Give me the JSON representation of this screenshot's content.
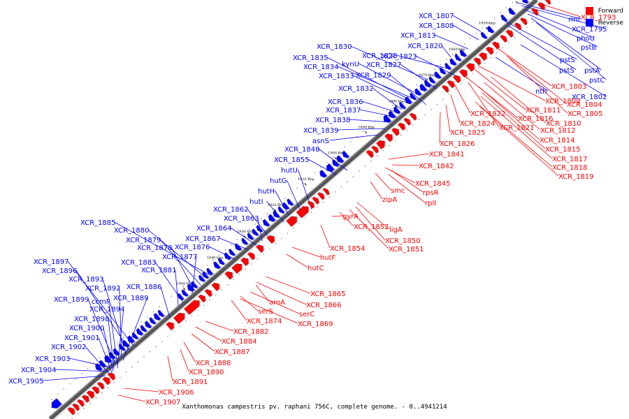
{
  "caption": "Xanthomonas campestris pv. raphani 756C, complete genome. - 0..4941214",
  "colors": {
    "forward": "#ff0000",
    "reverse": "#0000ff"
  },
  "legend": [
    {
      "label": "Forward",
      "color": "#ff0000"
    },
    {
      "label": "Reverse",
      "color": "#0000ff"
    }
  ],
  "ticks": [
    "1840 kbp",
    "1850 kbp",
    "1860 kbp",
    "1870 kbp",
    "1880 kbp",
    "1890 kbp",
    "1900 kbp",
    "1910 kbp",
    "1920 kbp",
    "1930 kbp",
    "1940 kbp",
    "1950 kbp"
  ],
  "reverse_labels": [
    "XCR_1807",
    "XCR_1808",
    "XCR_1813",
    "XCR_1820",
    "XCR_1830",
    "XCR_1828",
    "XCR_1823",
    "XCR_1835",
    "XCR_1834",
    "XCR_1833",
    "kynU",
    "XCR_1827",
    "XCR_1829",
    "XCR_1832",
    "XCR_1836",
    "XCR_1837",
    "XCR_1838",
    "XCR_1839",
    "asnS",
    "XCR_1848",
    "XCR_1855",
    "hutU",
    "hutG",
    "hutH",
    "hutI",
    "XCR_1862",
    "XCR_1863",
    "XCR_1864",
    "XCR_1867",
    "XCR_1876",
    "XCR_1885",
    "XCR_1880",
    "XCR_1879",
    "XCR_1878",
    "XCR_1877",
    "XCR_1883",
    "XCR_1881",
    "XCR_1886",
    "XCR_1897",
    "XCR_1896",
    "XCR_1893",
    "XCR_1892",
    "XCR_1899",
    "ccmF",
    "XCR_1894",
    "XCR_1889",
    "XCR_1898",
    "XCR_1900",
    "XCR_1901",
    "XCR_1902",
    "XCR_1903",
    "XCR_1904",
    "XCR_1905",
    "rmt",
    "XCR_1795",
    "phoU",
    "pstB",
    "pstS",
    "pstS",
    "pstA",
    "pstC",
    "nth",
    "XCR_1802"
  ],
  "forward_labels": [
    "XCR_1793",
    "XCR_1803",
    "XCR_1804",
    "XCR_1805",
    "XCR_1809",
    "XCR_1811",
    "XCR_1810",
    "XCR_1812",
    "XCR_1814",
    "XCR_1815",
    "XCR_1817",
    "XCR_1818",
    "XCR_1819",
    "XCR_1816",
    "XCR_1821",
    "XCR_1822",
    "XCR_1824",
    "XCR_1825",
    "XCR_1826",
    "XCR_1841",
    "XCR_1842",
    "XCR_1845",
    "rpsR",
    "rplI",
    "smc",
    "zipA",
    "ligA",
    "XCR_1850",
    "XCR_1851",
    "XCR_1852",
    "gyrA",
    "XCR_1854",
    "hutF",
    "hutC",
    "XCR_1865",
    "XCR_1866",
    "aroA",
    "serC",
    "XCR_1869",
    "serS",
    "XCR_1874",
    "XCR_1882",
    "XCR_1884",
    "XCR_1887",
    "XCR_1888",
    "XCR_1890",
    "XCR_1891",
    "XCR_1906",
    "XCR_1907"
  ]
}
